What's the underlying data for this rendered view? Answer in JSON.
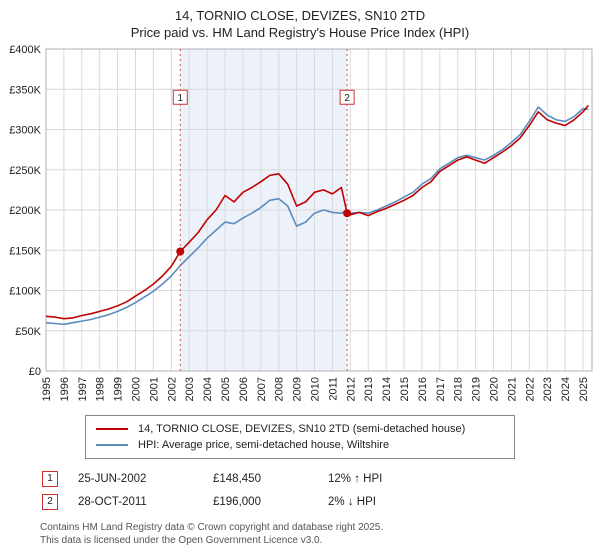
{
  "header": {
    "title": "14, TORNIO CLOSE, DEVIZES, SN10 2TD",
    "subtitle": "Price paid vs. HM Land Registry's House Price Index (HPI)"
  },
  "chart_data": {
    "type": "line",
    "title": "14, TORNIO CLOSE, DEVIZES, SN10 2TD",
    "subtitle": "Price paid vs. HM Land Registry's House Price Index (HPI)",
    "xlabel": "",
    "ylabel": "",
    "grid": true,
    "legend_position": "bottom",
    "x_range": [
      1995,
      2025.5
    ],
    "y_range": [
      0,
      400000
    ],
    "y_ticks": [
      0,
      50000,
      100000,
      150000,
      200000,
      250000,
      300000,
      350000,
      400000
    ],
    "y_tick_labels": [
      "£0",
      "£50K",
      "£100K",
      "£150K",
      "£200K",
      "£250K",
      "£300K",
      "£350K",
      "£400K"
    ],
    "x_ticks": [
      1995,
      1996,
      1997,
      1998,
      1999,
      2000,
      2001,
      2002,
      2003,
      2004,
      2005,
      2006,
      2007,
      2008,
      2009,
      2010,
      2011,
      2012,
      2013,
      2014,
      2015,
      2016,
      2017,
      2018,
      2019,
      2020,
      2021,
      2022,
      2023,
      2024,
      2025
    ],
    "shaded_region": {
      "x0": 2002.5,
      "x1": 2011.82,
      "color": "#edf2fa"
    },
    "colors": {
      "grid": "#d9d9d9",
      "plot_border": "#b0b0b0",
      "dashed": "#cc5555",
      "marker": "#c00000",
      "flag_border": "#cc3333",
      "flag_text": "#222222"
    },
    "markers": [
      {
        "label": "1",
        "x": 2002.5,
        "y": 148450
      },
      {
        "label": "2",
        "x": 2011.82,
        "y": 196000
      }
    ],
    "x": [
      1995,
      1995.5,
      1996,
      1996.5,
      1997,
      1997.5,
      1998,
      1998.5,
      1999,
      1999.5,
      2000,
      2000.5,
      2001,
      2001.5,
      2002,
      2002.5,
      2003,
      2003.5,
      2004,
      2004.5,
      2005,
      2005.5,
      2006,
      2006.5,
      2007,
      2007.5,
      2008,
      2008.5,
      2009,
      2009.5,
      2010,
      2010.5,
      2011,
      2011.5,
      2011.82,
      2012,
      2012.5,
      2013,
      2013.5,
      2014,
      2014.5,
      2015,
      2015.5,
      2016,
      2016.5,
      2017,
      2017.5,
      2018,
      2018.5,
      2019,
      2019.5,
      2020,
      2020.5,
      2021,
      2021.5,
      2022,
      2022.5,
      2023,
      2023.5,
      2024,
      2024.5,
      2025,
      2025.3
    ],
    "series": [
      {
        "id": "property",
        "name": "14, TORNIO CLOSE, DEVIZES, SN10 2TD (semi-detached house)",
        "color": "#c00000",
        "values": [
          68000,
          67000,
          65000,
          66000,
          69000,
          71000,
          74000,
          77000,
          81000,
          86000,
          93000,
          100000,
          108000,
          118000,
          130000,
          148450,
          160000,
          172000,
          188000,
          200000,
          218000,
          210000,
          222000,
          228000,
          235000,
          243000,
          245000,
          232000,
          205000,
          210000,
          222000,
          225000,
          220000,
          228000,
          196000,
          194000,
          197000,
          193000,
          198000,
          202000,
          207000,
          212000,
          218000,
          228000,
          235000,
          248000,
          255000,
          262000,
          266000,
          262000,
          258000,
          265000,
          272000,
          280000,
          290000,
          305000,
          322000,
          312000,
          308000,
          305000,
          312000,
          322000,
          330000
        ]
      },
      {
        "id": "hpi",
        "name": "HPI: Average price, semi-detached house, Wiltshire",
        "color": "#5b8cbe",
        "values": [
          60000,
          59000,
          58000,
          60000,
          62000,
          64000,
          67000,
          70000,
          74000,
          79000,
          85000,
          92000,
          99000,
          108000,
          118000,
          131000,
          142000,
          153000,
          165000,
          175000,
          185000,
          183000,
          190000,
          196000,
          203000,
          212000,
          214000,
          205000,
          180000,
          185000,
          196000,
          200000,
          197000,
          196000,
          200000,
          196000,
          197000,
          196000,
          200000,
          205000,
          210000,
          216000,
          222000,
          232000,
          239000,
          251000,
          258000,
          265000,
          268000,
          265000,
          262000,
          268000,
          275000,
          284000,
          294000,
          310000,
          328000,
          318000,
          312000,
          310000,
          316000,
          326000,
          325000
        ]
      }
    ]
  },
  "annotations": [
    {
      "num": "1",
      "date": "25-JUN-2002",
      "price": "£148,450",
      "hpi": "12% ↑ HPI"
    },
    {
      "num": "2",
      "date": "28-OCT-2011",
      "price": "£196,000",
      "hpi": "2% ↓ HPI"
    }
  ],
  "footer": {
    "line1": "Contains HM Land Registry data © Crown copyright and database right 2025.",
    "line2": "This data is licensed under the Open Government Licence v3.0."
  }
}
